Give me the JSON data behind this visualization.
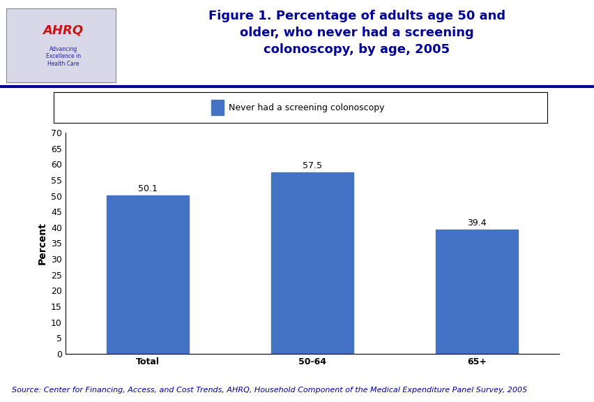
{
  "categories": [
    "Total",
    "50-64",
    "65+"
  ],
  "values": [
    50.1,
    57.5,
    39.4
  ],
  "bar_color": "#4472C4",
  "bar_width": 0.5,
  "ylabel": "Percent",
  "ylim": [
    0,
    70
  ],
  "yticks": [
    0,
    5,
    10,
    15,
    20,
    25,
    30,
    35,
    40,
    45,
    50,
    55,
    60,
    65,
    70
  ],
  "legend_label": "Never had a screening colonoscopy",
  "title_line1": "Figure 1. Percentage of adults age 50 and",
  "title_line2": "older, who never had a screening",
  "title_line3": "colonoscopy, by age, 2005",
  "title_color": "#000099",
  "source_text": "Source: Center for Financing, Access, and Cost Trends, AHRQ, Household Component of the Medical Expenditure Panel Survey, 2005",
  "source_color": "#000099",
  "background_color": "#FFFFFF",
  "header_line_color": "#000099",
  "value_labels": [
    "50.1",
    "57.5",
    "39.4"
  ],
  "value_label_fontsize": 9,
  "axis_label_fontsize": 10,
  "tick_label_fontsize": 9,
  "legend_fontsize": 9,
  "source_fontsize": 8,
  "title_fontsize": 13
}
